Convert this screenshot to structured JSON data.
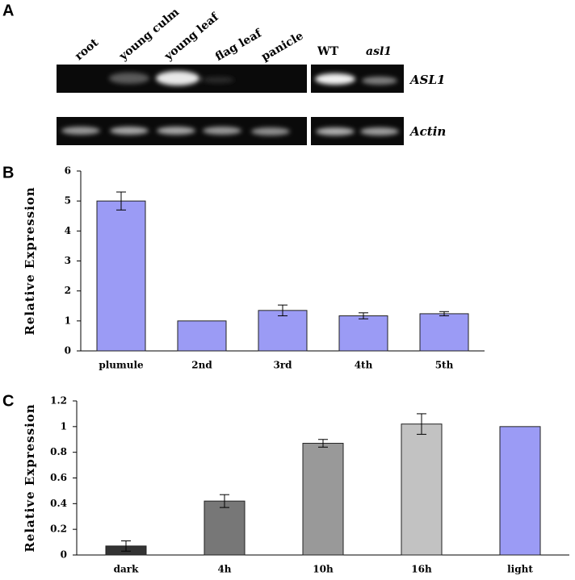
{
  "panels": [
    "A",
    "B",
    "C"
  ],
  "gel": {
    "lanes": [
      "root",
      "young culm",
      "young leaf",
      "flag leaf",
      "panicle"
    ],
    "genotypes": [
      "WT",
      "asl1"
    ],
    "genes": [
      "ASL1",
      "Actin"
    ]
  },
  "chart_data": [
    {
      "type": "bar",
      "ylabel": "Relative Expression",
      "categories": [
        "plumule",
        "2nd",
        "3rd",
        "4th",
        "5th"
      ],
      "values": [
        5.0,
        1.0,
        1.35,
        1.17,
        1.24
      ],
      "errors": [
        0.3,
        null,
        0.18,
        0.1,
        0.07
      ],
      "colors": [
        "#9b9bf5",
        "#9b9bf5",
        "#9b9bf5",
        "#9b9bf5",
        "#9b9bf5"
      ],
      "ylim": [
        0,
        6
      ],
      "yticks": [
        0,
        1,
        2,
        3,
        4,
        5,
        6
      ]
    },
    {
      "type": "bar",
      "ylabel": "Relative Expression",
      "categories": [
        "dark",
        "4h",
        "10h",
        "16h",
        "light"
      ],
      "values": [
        0.07,
        0.42,
        0.87,
        1.02,
        1.0
      ],
      "errors": [
        0.04,
        0.05,
        0.03,
        0.08,
        null
      ],
      "colors": [
        "#333333",
        "#777777",
        "#999999",
        "#c2c2c2",
        "#9b9bf5"
      ],
      "ylim": [
        0,
        1.2
      ],
      "yticks": [
        0,
        0.2,
        0.4,
        0.6,
        0.8,
        1,
        1.2
      ]
    }
  ]
}
